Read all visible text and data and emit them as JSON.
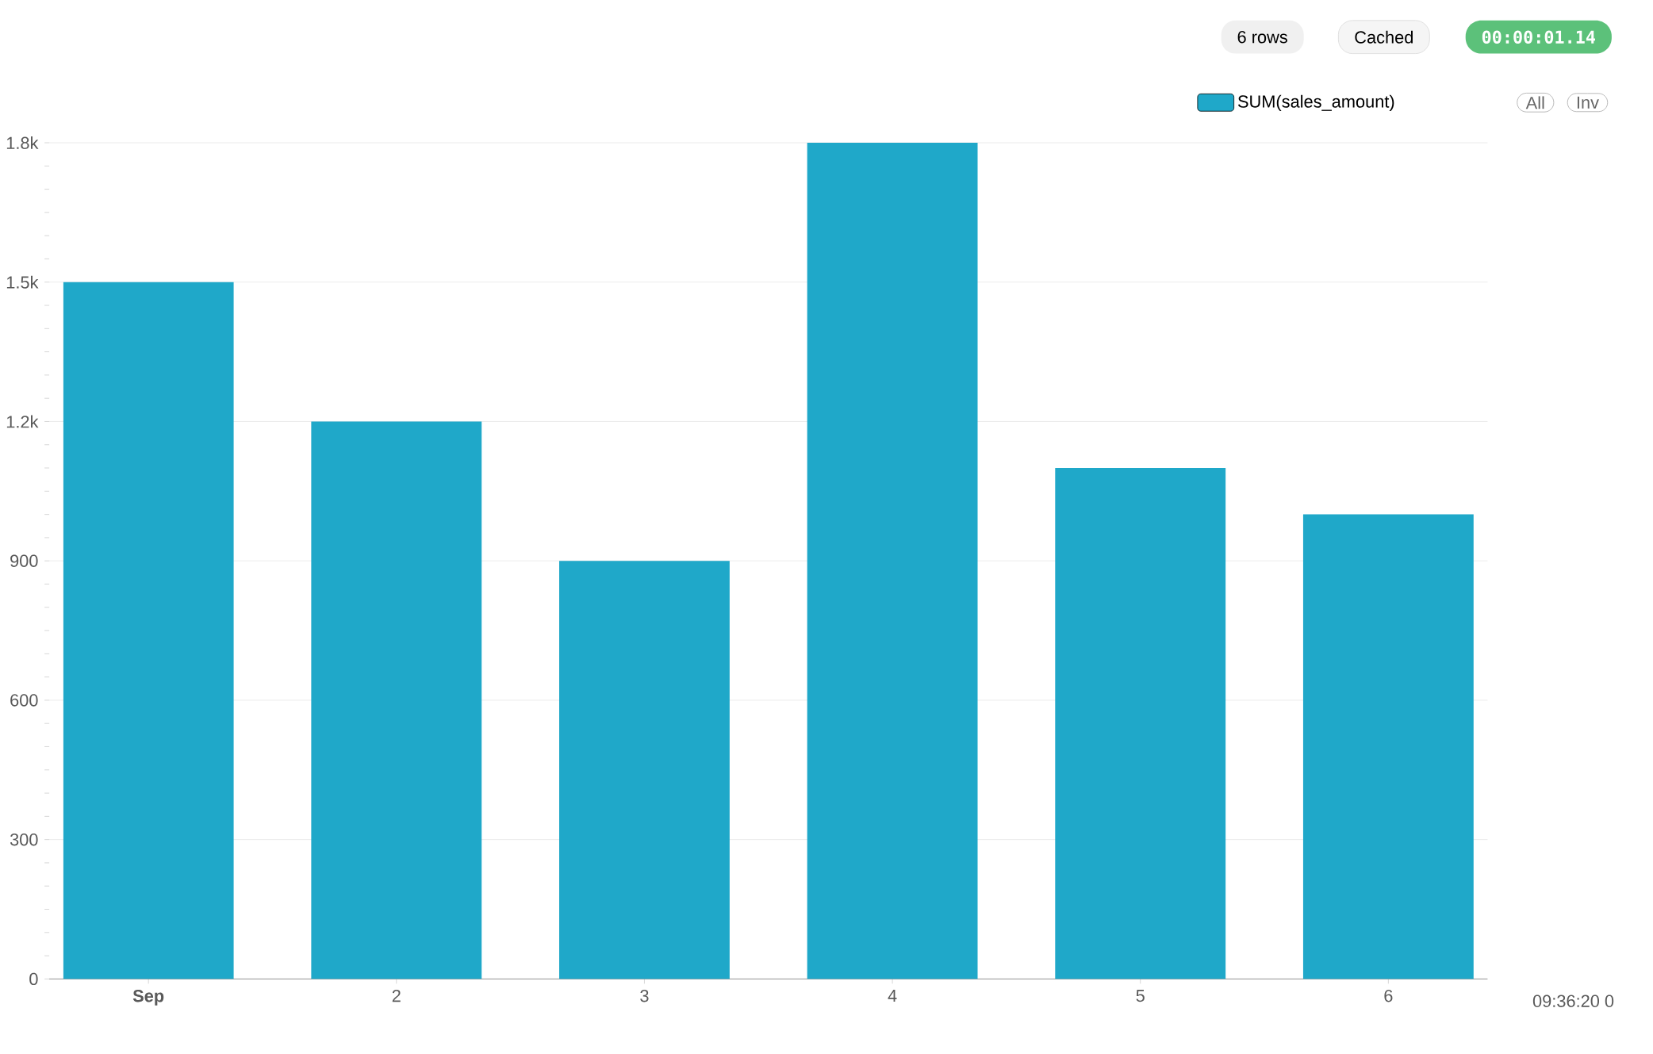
{
  "chart_data": {
    "type": "bar",
    "categories": [
      "Sep",
      "2",
      "3",
      "4",
      "5",
      "6"
    ],
    "series": [
      {
        "name": "SUM(sales_amount)",
        "color": "#1fa8c9",
        "values": [
          1500,
          1200,
          900,
          1800,
          1100,
          1000
        ]
      }
    ],
    "ylim": [
      0,
      1800
    ],
    "yticks": [
      0,
      300,
      600,
      900,
      {
        "value": 1200,
        "label": "1.2k"
      },
      {
        "value": 1500,
        "label": "1.5k"
      },
      {
        "value": 1800,
        "label": "1.8k"
      }
    ],
    "grid": "y",
    "legend": "top right",
    "annotations": [
      "6 rows",
      "Cached",
      "00:00:01.14",
      "All",
      "Inv",
      "09:36:20 0"
    ]
  }
}
